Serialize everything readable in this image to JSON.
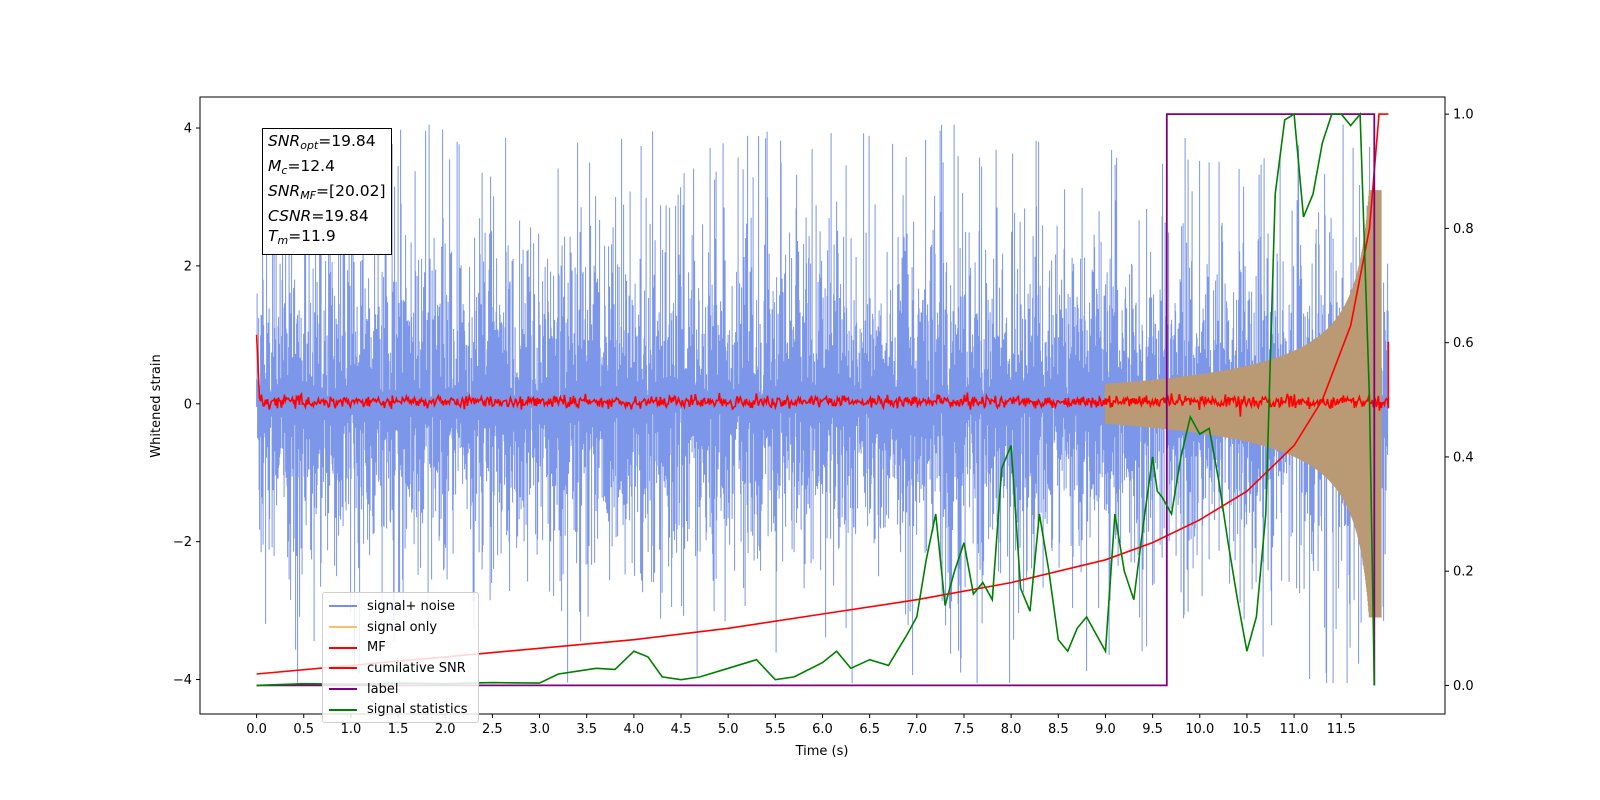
{
  "chart_data": {
    "type": "line",
    "xlabel": "Time (s)",
    "ylabel": "Whitened strain",
    "xlim": [
      -0.6,
      12.6
    ],
    "ylim_left": [
      -4.5,
      4.45
    ],
    "ylim_right": [
      -0.05,
      1.03
    ],
    "x_ticks": [
      "0.0",
      "0.5",
      "1.0",
      "1.5",
      "2.0",
      "2.5",
      "3.0",
      "3.5",
      "4.0",
      "4.5",
      "5.0",
      "5.5",
      "6.0",
      "6.5",
      "7.0",
      "7.5",
      "8.0",
      "8.5",
      "9.0",
      "9.5",
      "10.0",
      "10.5",
      "11.0",
      "11.5"
    ],
    "y_left_ticks": [
      "4",
      "2",
      "0",
      "−2",
      "−4"
    ],
    "y_right_ticks": [
      "1.0",
      "0.8",
      "0.6",
      "0.4",
      "0.2",
      "0.0"
    ],
    "info": [
      {
        "sym": "SNR",
        "sub": "opt",
        "val": "=19.84"
      },
      {
        "sym": "M",
        "sub": "c",
        "val": "=12.4"
      },
      {
        "sym": "SNR",
        "sub": "MF",
        "val": "=[20.02]"
      },
      {
        "sym": "CSNR",
        "sub": "",
        "val": "=19.84"
      },
      {
        "sym": "T",
        "sub": "m",
        "val": "=11.9"
      }
    ],
    "series": [
      {
        "name": "signal+ noise",
        "color": "#7590e8",
        "axis": "left",
        "style": "noise band, amplitude ~±2.5, spikes to ±4"
      },
      {
        "name": "signal only",
        "color": "#f5c26b",
        "axis": "left",
        "style": "chirp, amplitude grows from 0 to ~3 near 11.9 s"
      },
      {
        "name": "MF",
        "color": "#ff0000",
        "axis": "left",
        "style": "near 0 with small noise, 1.0 at t=0"
      },
      {
        "name": "cumilative SNR",
        "color": "#ff0000",
        "axis": "right",
        "x": [
          0.0,
          1.0,
          2.0,
          3.0,
          4.0,
          5.0,
          6.0,
          7.0,
          8.0,
          9.0,
          9.5,
          10.0,
          10.5,
          11.0,
          11.3,
          11.6,
          11.8,
          11.9
        ],
        "values": [
          0.02,
          0.035,
          0.05,
          0.065,
          0.08,
          0.1,
          0.125,
          0.15,
          0.18,
          0.22,
          0.25,
          0.29,
          0.34,
          0.42,
          0.5,
          0.63,
          0.8,
          1.0
        ]
      },
      {
        "name": "label",
        "color": "#800080",
        "axis": "right",
        "x": [
          0.0,
          9.65,
          9.65,
          11.85,
          11.85
        ],
        "values": [
          0.0,
          0.0,
          1.0,
          1.0,
          0.0
        ]
      },
      {
        "name": "signal statistics",
        "color": "#008000",
        "axis": "right",
        "x": [
          0.0,
          0.5,
          1.0,
          1.5,
          2.0,
          2.5,
          3.0,
          3.2,
          3.4,
          3.6,
          3.8,
          4.0,
          4.15,
          4.3,
          4.5,
          4.7,
          5.0,
          5.3,
          5.5,
          5.7,
          6.0,
          6.15,
          6.3,
          6.5,
          6.7,
          6.9,
          7.0,
          7.1,
          7.2,
          7.3,
          7.4,
          7.5,
          7.6,
          7.7,
          7.8,
          7.9,
          8.0,
          8.1,
          8.2,
          8.3,
          8.4,
          8.5,
          8.6,
          8.7,
          8.8,
          8.9,
          9.0,
          9.1,
          9.2,
          9.3,
          9.4,
          9.5,
          9.55,
          9.6,
          9.7,
          9.8,
          9.9,
          10.0,
          10.1,
          10.2,
          10.3,
          10.4,
          10.5,
          10.6,
          10.7,
          10.8,
          10.9,
          11.0,
          11.1,
          11.2,
          11.3,
          11.4,
          11.5,
          11.6,
          11.7,
          11.8,
          11.85
        ],
        "values": [
          0.0,
          0.003,
          0.002,
          0.004,
          0.003,
          0.005,
          0.004,
          0.02,
          0.025,
          0.03,
          0.028,
          0.06,
          0.05,
          0.015,
          0.01,
          0.015,
          0.03,
          0.045,
          0.01,
          0.015,
          0.04,
          0.06,
          0.03,
          0.045,
          0.035,
          0.09,
          0.12,
          0.22,
          0.3,
          0.14,
          0.2,
          0.25,
          0.16,
          0.18,
          0.15,
          0.38,
          0.42,
          0.17,
          0.13,
          0.3,
          0.2,
          0.08,
          0.06,
          0.1,
          0.12,
          0.09,
          0.06,
          0.3,
          0.2,
          0.15,
          0.28,
          0.4,
          0.34,
          0.33,
          0.3,
          0.4,
          0.47,
          0.44,
          0.45,
          0.36,
          0.25,
          0.15,
          0.06,
          0.12,
          0.3,
          0.86,
          0.99,
          1.0,
          0.82,
          0.86,
          0.95,
          1.0,
          1.0,
          0.98,
          1.0,
          0.5,
          0.0
        ]
      }
    ]
  }
}
